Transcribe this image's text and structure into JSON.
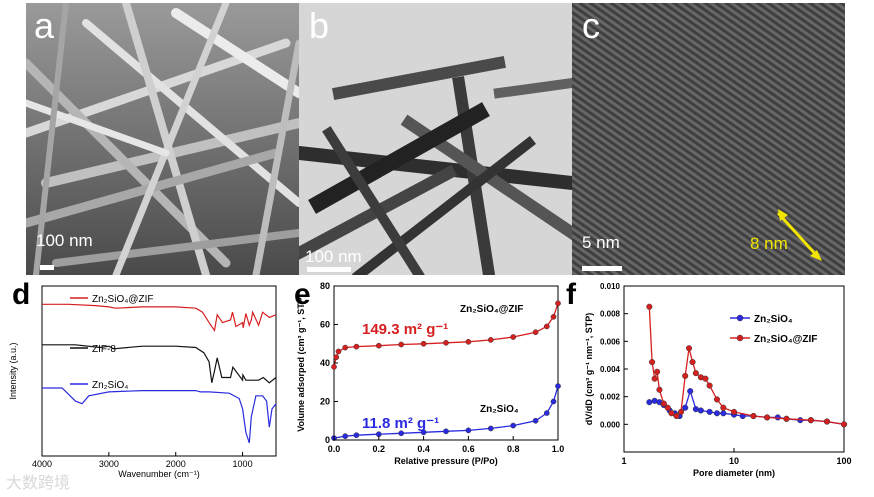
{
  "panels": {
    "a": {
      "label": "a",
      "scale": "100 nm"
    },
    "b": {
      "label": "b",
      "scale": "100 nm"
    },
    "c": {
      "label": "c",
      "scale": "5 nm",
      "annotation": "8 nm"
    },
    "d": {
      "label": "d"
    },
    "e": {
      "label": "e"
    },
    "f": {
      "label": "f"
    }
  },
  "colors": {
    "zn2sio4": "#2a2ae0",
    "zif8": "#111111",
    "composite": "#d62020",
    "annotation": "#f2e600"
  },
  "watermark": "大数跨境",
  "chart_data": [
    {
      "type": "line",
      "panel": "d",
      "xlabel": "Wavenumber (cm⁻¹)",
      "ylabel": "Intensity (a.u.)",
      "xlim": [
        4000,
        500
      ],
      "xticks": [
        "4000",
        "3000",
        "2000",
        "1000"
      ],
      "series": [
        {
          "name": "Zn₂SiO₄@ZIF",
          "color": "#d62020",
          "x": [
            4000,
            3600,
            3200,
            3000,
            2900,
            2500,
            2000,
            1700,
            1600,
            1500,
            1420,
            1380,
            1300,
            1180,
            1150,
            1100,
            1000,
            990,
            950,
            900,
            870,
            850,
            760,
            700,
            600,
            500
          ],
          "y": [
            0.86,
            0.86,
            0.85,
            0.84,
            0.83,
            0.84,
            0.84,
            0.83,
            0.8,
            0.72,
            0.66,
            0.78,
            0.72,
            0.74,
            0.8,
            0.69,
            0.72,
            0.68,
            0.79,
            0.7,
            0.74,
            0.8,
            0.7,
            0.8,
            0.76,
            0.78
          ]
        },
        {
          "name": "ZIF-8",
          "color": "#111111",
          "x": [
            4000,
            3500,
            3130,
            3000,
            2930,
            2500,
            2000,
            1700,
            1580,
            1500,
            1460,
            1420,
            1380,
            1310,
            1180,
            1145,
            1000,
            995,
            950,
            760,
            690,
            600,
            500
          ],
          "y": [
            0.55,
            0.55,
            0.53,
            0.54,
            0.52,
            0.54,
            0.54,
            0.53,
            0.49,
            0.42,
            0.26,
            0.35,
            0.45,
            0.3,
            0.3,
            0.38,
            0.28,
            0.32,
            0.28,
            0.28,
            0.3,
            0.26,
            0.3
          ]
        },
        {
          "name": "Zn₂SiO₄",
          "color": "#2a2ae0",
          "x": [
            4000,
            3700,
            3500,
            3400,
            3300,
            3000,
            2500,
            2000,
            1700,
            1630,
            1500,
            1200,
            1050,
            1000,
            950,
            900,
            870,
            800,
            700,
            640,
            600,
            560,
            500
          ],
          "y": [
            0.22,
            0.22,
            0.12,
            0.1,
            0.16,
            0.19,
            0.2,
            0.2,
            0.2,
            0.19,
            0.19,
            0.18,
            0.14,
            0.06,
            -0.12,
            -0.2,
            0.0,
            0.16,
            0.16,
            0.12,
            -0.08,
            0.06,
            0.1
          ]
        }
      ]
    },
    {
      "type": "line",
      "panel": "e",
      "xlabel": "Relative pressure (P/Po)",
      "ylabel": "Volume adsorped (cm³ g⁻¹, STP)",
      "xlim": [
        0.0,
        1.0
      ],
      "ylim": [
        0,
        80
      ],
      "xticks": [
        "0.0",
        "0.2",
        "0.4",
        "0.6",
        "0.8",
        "1.0"
      ],
      "yticks": [
        "0",
        "20",
        "40",
        "60",
        "80"
      ],
      "annotations": [
        "149.3 m² g⁻¹",
        "11.8 m² g⁻¹"
      ],
      "series": [
        {
          "name": "Zn₂SiO₄@ZIF",
          "color": "#d62020",
          "x": [
            0.0,
            0.01,
            0.02,
            0.05,
            0.1,
            0.2,
            0.3,
            0.4,
            0.5,
            0.6,
            0.7,
            0.8,
            0.9,
            0.95,
            0.98,
            1.0
          ],
          "y": [
            38,
            43,
            46,
            48,
            48.5,
            49,
            49.6,
            50,
            50.5,
            51,
            52,
            53.5,
            56,
            59,
            64,
            71
          ]
        },
        {
          "name": "Zn₂SiO₄",
          "color": "#2a2ae0",
          "x": [
            0.0,
            0.05,
            0.1,
            0.2,
            0.3,
            0.4,
            0.5,
            0.6,
            0.7,
            0.8,
            0.9,
            0.95,
            0.98,
            1.0
          ],
          "y": [
            1,
            2,
            2.5,
            3,
            3.5,
            4,
            4.5,
            5,
            6,
            7.5,
            10,
            14,
            20,
            28
          ]
        }
      ]
    },
    {
      "type": "line",
      "panel": "f",
      "xlabel": "Pore diameter (nm)",
      "ylabel": "dV/dD (cm³ g⁻¹ nm⁻¹, STP)",
      "xscale": "log",
      "xlim": [
        1,
        100
      ],
      "ylim": [
        -0.002,
        0.01
      ],
      "xticks": [
        "1",
        "10",
        "100"
      ],
      "yticks": [
        "0.000",
        "0.002",
        "0.004",
        "0.006",
        "0.008",
        "0.010"
      ],
      "legend": "top-right",
      "series": [
        {
          "name": "Zn₂SiO₄",
          "color": "#2a2ae0",
          "x": [
            1.7,
            1.9,
            2.1,
            2.3,
            2.6,
            2.9,
            3.2,
            3.6,
            4.0,
            4.5,
            5,
            6,
            7,
            8,
            10,
            12,
            15,
            20,
            25,
            30,
            40,
            50,
            70,
            100
          ],
          "y": [
            0.0016,
            0.0017,
            0.0016,
            0.0014,
            0.001,
            0.0008,
            0.0006,
            0.0012,
            0.0024,
            0.0011,
            0.001,
            0.0009,
            0.0008,
            0.0008,
            0.0007,
            0.0006,
            0.0006,
            0.0005,
            0.0005,
            0.0004,
            0.0003,
            0.0003,
            0.0002,
            0.0
          ]
        },
        {
          "name": "Zn₂SiO₄@ZIF",
          "color": "#d62020",
          "x": [
            1.7,
            1.8,
            1.9,
            2.0,
            2.1,
            2.3,
            2.5,
            2.7,
            3.0,
            3.3,
            3.6,
            3.9,
            4.2,
            4.5,
            5.0,
            5.5,
            6.0,
            7.0,
            8,
            10,
            15,
            20,
            30,
            50,
            70,
            100
          ],
          "y": [
            0.0085,
            0.0045,
            0.0033,
            0.0038,
            0.0025,
            0.0015,
            0.0012,
            0.0008,
            0.0006,
            0.0009,
            0.0035,
            0.0055,
            0.0045,
            0.0037,
            0.0034,
            0.0033,
            0.0028,
            0.0018,
            0.0012,
            0.0009,
            0.0006,
            0.0005,
            0.0004,
            0.0003,
            0.0002,
            0.0
          ]
        }
      ]
    }
  ]
}
